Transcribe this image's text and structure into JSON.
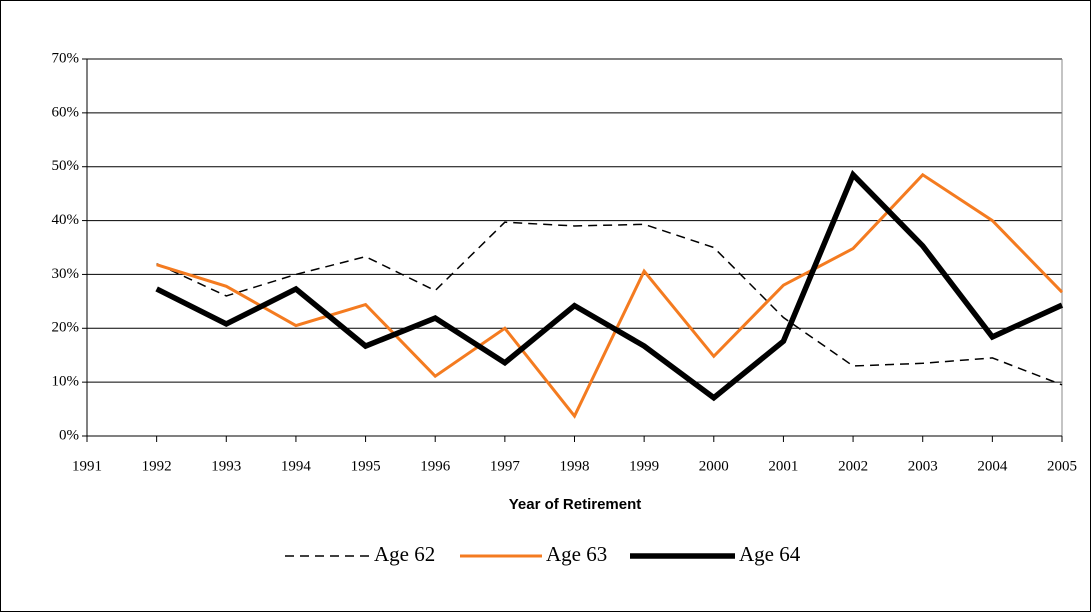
{
  "chart_data": {
    "type": "line",
    "x_label": "Year of Retirement",
    "x": [
      1992,
      1993,
      1994,
      1995,
      1996,
      1997,
      1998,
      1999,
      2000,
      2001,
      2002,
      2003,
      2004,
      2005
    ],
    "series": [
      {
        "name": "Age 62",
        "color": "#000000",
        "style": "dashed",
        "values": [
          32,
          26,
          30,
          33.3,
          27,
          39.7,
          39,
          39.3,
          35,
          22,
          13,
          13.5,
          14.5,
          9.5
        ]
      },
      {
        "name": "Age 63",
        "color": "#f47b20",
        "style": "solid",
        "values": [
          31.8,
          27.8,
          20.5,
          24.4,
          11.1,
          20,
          3.7,
          30.6,
          14.8,
          28,
          34.8,
          48.5,
          40,
          26.7
        ]
      },
      {
        "name": "Age 64",
        "color": "#000000",
        "style": "thick",
        "values": [
          27.3,
          20.8,
          27.3,
          16.7,
          21.9,
          13.6,
          24.2,
          16.7,
          7.1,
          17.6,
          48.5,
          35.3,
          18.4,
          24.3
        ]
      }
    ],
    "xlim": [
      1991,
      2005
    ],
    "xticks": [
      1991,
      1992,
      1993,
      1994,
      1995,
      1996,
      1997,
      1998,
      1999,
      2000,
      2001,
      2002,
      2003,
      2004,
      2005
    ],
    "ylim": [
      0,
      70
    ],
    "yticks": [
      {
        "value": 0,
        "label": "0%"
      },
      {
        "value": 10,
        "label": "10%"
      },
      {
        "value": 20,
        "label": "20%"
      },
      {
        "value": 30,
        "label": "30%"
      },
      {
        "value": 40,
        "label": "40%"
      },
      {
        "value": 50,
        "label": "50%"
      },
      {
        "value": 60,
        "label": "60%"
      },
      {
        "value": 70,
        "label": "70%"
      }
    ],
    "grid": true,
    "legend": "bottom"
  }
}
